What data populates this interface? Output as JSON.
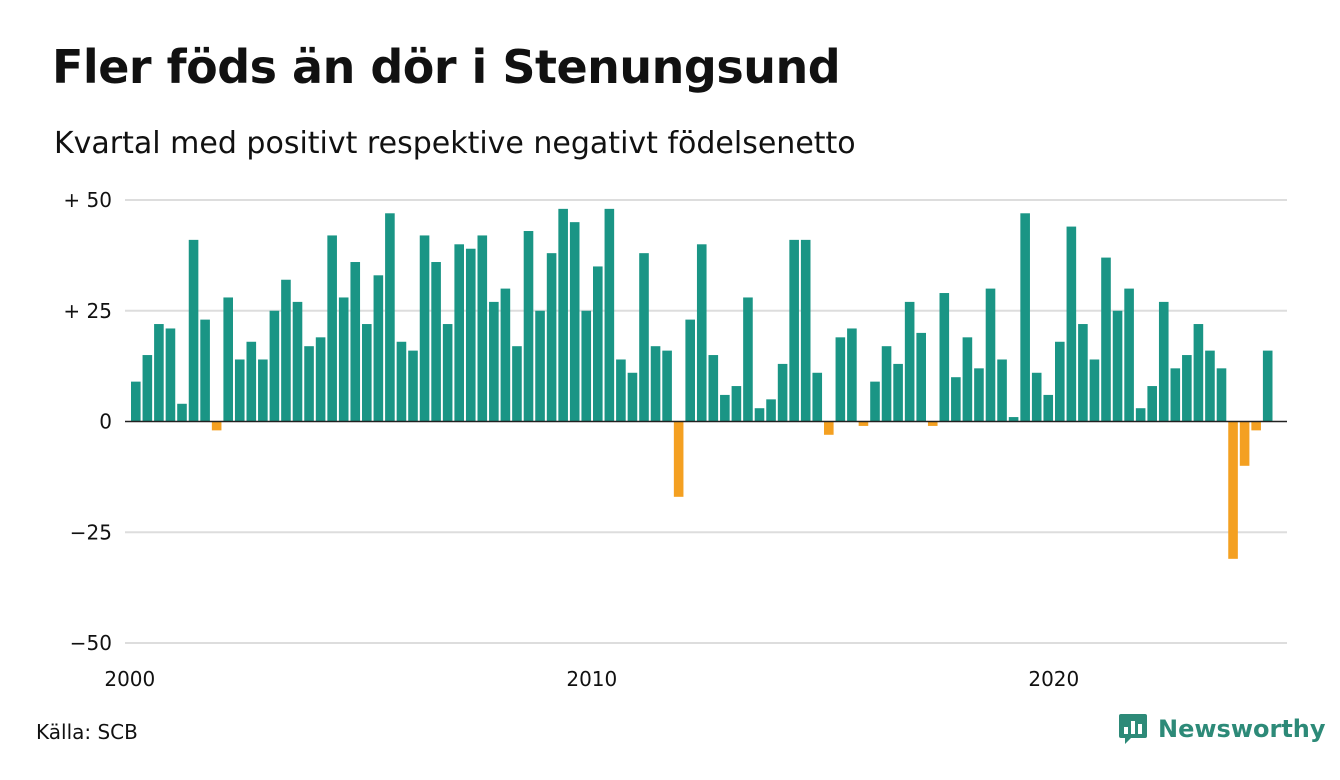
{
  "header": {
    "title": "Fler föds än dör i Stenungsund",
    "subtitle": "Kvartal med positivt respektive negativt födelsenetto"
  },
  "footer": {
    "source": "Källa: SCB",
    "brand": "Newsworthy"
  },
  "colors": {
    "positive": "#1a9585",
    "negative": "#f4a021",
    "grid": "#dddddd",
    "brand": "#2d8a78"
  },
  "chart_data": {
    "type": "bar",
    "title": "Fler föds än dör i Stenungsund",
    "subtitle": "Kvartal med positivt respektive negativt födelsenetto",
    "ylim": [
      -50,
      50
    ],
    "y_ticks": [
      {
        "value": 50,
        "label": "+ 50"
      },
      {
        "value": 25,
        "label": "+ 25"
      },
      {
        "value": 0,
        "label": "0"
      },
      {
        "value": -25,
        "label": "−25"
      },
      {
        "value": -50,
        "label": "−50"
      }
    ],
    "x_ticks": [
      {
        "year": 2000,
        "label": "2000"
      },
      {
        "year": 2010,
        "label": "2010"
      },
      {
        "year": 2020,
        "label": "2020"
      }
    ],
    "first_period": "2000 Q1",
    "x_range": [
      "2000 Q1",
      "2024 Q4"
    ],
    "grid": true,
    "legend": "none",
    "values": [
      9,
      15,
      22,
      21,
      4,
      41,
      23,
      -2,
      28,
      14,
      18,
      14,
      25,
      32,
      27,
      17,
      19,
      42,
      28,
      36,
      22,
      33,
      47,
      18,
      16,
      42,
      36,
      22,
      40,
      39,
      42,
      27,
      30,
      17,
      43,
      25,
      38,
      48,
      45,
      25,
      35,
      48,
      14,
      11,
      38,
      17,
      16,
      -17,
      23,
      40,
      15,
      6,
      8,
      28,
      3,
      5,
      13,
      41,
      41,
      11,
      -3,
      19,
      21,
      -1,
      9,
      17,
      13,
      27,
      20,
      -1,
      29,
      10,
      19,
      12,
      30,
      14,
      1,
      47,
      11,
      6,
      18,
      44,
      22,
      14,
      37,
      25,
      30,
      3,
      8,
      27,
      12,
      15,
      22,
      16,
      12,
      -31,
      -10,
      -2,
      16
    ]
  }
}
